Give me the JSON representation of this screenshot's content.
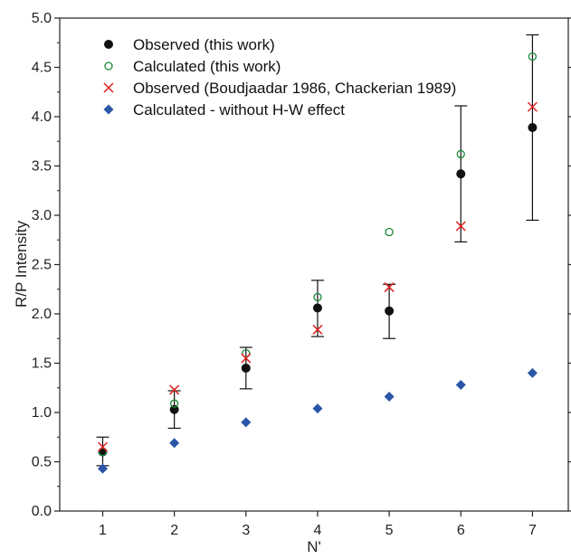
{
  "chart_data": {
    "type": "scatter",
    "xlabel": "N'",
    "ylabel": "R/P Intensity",
    "xlim": [
      0.4,
      7.5
    ],
    "ylim": [
      0.0,
      5.0
    ],
    "xticks": [
      "1",
      "2",
      "3",
      "4",
      "5",
      "6",
      "7"
    ],
    "yticks": [
      "0.0",
      "0.5",
      "1.0",
      "1.5",
      "2.0",
      "2.5",
      "3.0",
      "3.5",
      "4.0",
      "4.5",
      "5.0"
    ],
    "xtick_values": [
      1,
      2,
      3,
      4,
      5,
      6,
      7
    ],
    "ytick_values": [
      0,
      0.5,
      1.0,
      1.5,
      2.0,
      2.5,
      3.0,
      3.5,
      4.0,
      4.5,
      5.0
    ],
    "legend_position": "top-left",
    "grid": false,
    "series": [
      {
        "name": "Observed (this work)",
        "marker": "filled-circle",
        "color": "#111111",
        "x": [
          1,
          2,
          3,
          4,
          5,
          6,
          7
        ],
        "y": [
          0.6,
          1.03,
          1.45,
          2.06,
          2.03,
          3.42,
          3.89
        ],
        "error_low": [
          0.46,
          0.84,
          1.24,
          1.77,
          1.75,
          2.73,
          2.95
        ],
        "error_high": [
          0.75,
          1.22,
          1.66,
          2.34,
          2.3,
          4.11,
          4.83
        ]
      },
      {
        "name": "Calculated (this work)",
        "marker": "open-circle",
        "color": "#1a8a3a",
        "x": [
          1,
          2,
          3,
          4,
          5,
          6,
          7
        ],
        "y": [
          0.6,
          1.09,
          1.6,
          2.17,
          2.83,
          3.62,
          4.61
        ]
      },
      {
        "name": "Observed (Boudjaadar 1986, Chackerian 1989)",
        "marker": "x",
        "color": "#e02020",
        "x": [
          1,
          2,
          3,
          4,
          5,
          6,
          7
        ],
        "y": [
          0.65,
          1.23,
          1.55,
          1.84,
          2.27,
          2.89,
          4.1
        ]
      },
      {
        "name": "Calculated - without H-W effect",
        "marker": "diamond",
        "color": "#2b56a8",
        "x": [
          1,
          2,
          3,
          4,
          5,
          6,
          7
        ],
        "y": [
          0.43,
          0.69,
          0.9,
          1.04,
          1.16,
          1.28,
          1.4
        ]
      }
    ]
  }
}
